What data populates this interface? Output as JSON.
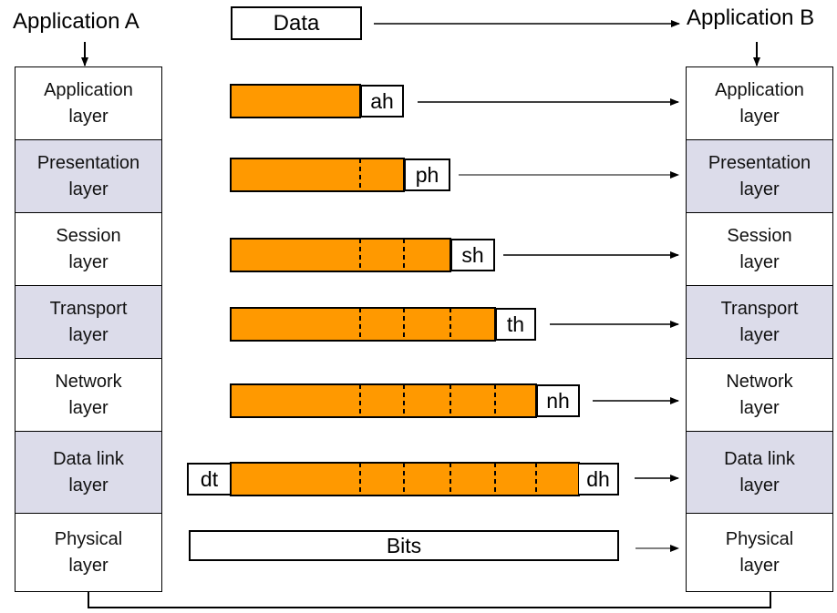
{
  "app_a": {
    "title": "Application A"
  },
  "app_b": {
    "title": "Application B"
  },
  "data_box": {
    "label": "Data"
  },
  "layers": [
    {
      "label": "Application\nlayer",
      "shaded": false
    },
    {
      "label": "Presentation\nlayer",
      "shaded": true
    },
    {
      "label": "Session\nlayer",
      "shaded": false
    },
    {
      "label": "Transport\nlayer",
      "shaded": true
    },
    {
      "label": "Network\nlayer",
      "shaded": false
    },
    {
      "label": "Data link\nlayer",
      "shaded": true
    },
    {
      "label": "Physical\nlayer",
      "shaded": false
    }
  ],
  "headers": {
    "ah": "ah",
    "ph": "ph",
    "sh": "sh",
    "th": "th",
    "nh": "nh",
    "dh": "dh",
    "dt": "dt"
  },
  "bits_label": "Bits",
  "colors": {
    "payload": "#ff9900",
    "layer_shade": "#dcdcea",
    "line": "#000000",
    "background": "#ffffff"
  }
}
